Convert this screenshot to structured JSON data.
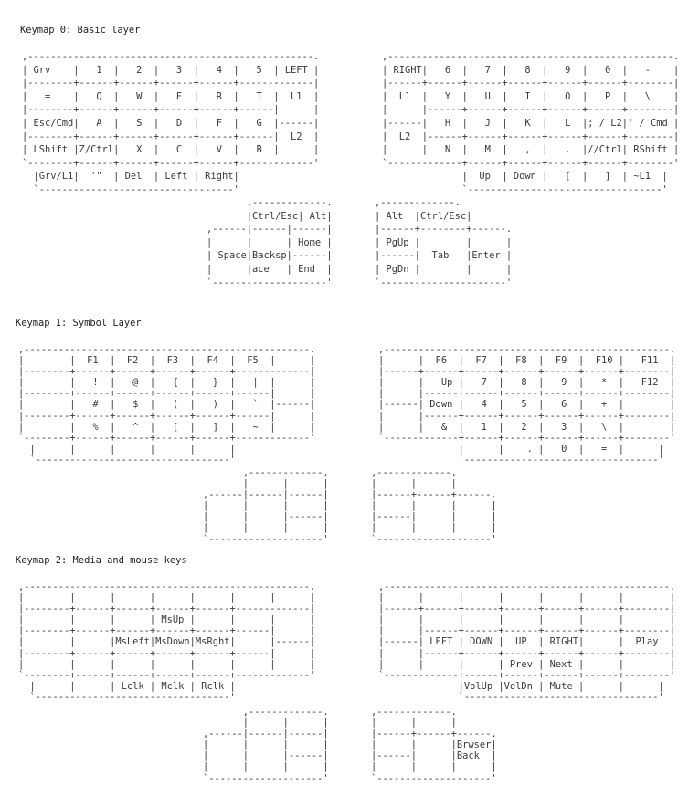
{
  "layers": [
    {
      "title": "Keymap 0: Basic layer",
      "left_hand": [
        ",--------------------------------------------------.",
        "| Grv    |   1  |   2  |   3  |   4  |   5  | LEFT |",
        "|--------+------+------+------+------+-------------|",
        "|   =    |   Q  |   W  |   E  |   R  |   T  |  L1  |",
        "|--------+------+------+------+------+------|      |",
        "| Esc/Cmd|   A  |   S  |   D  |   F  |   G  |------|",
        "|--------+------+------+------+------+------|  L2  |",
        "| LShift |Z/Ctrl|   X  |   C  |   V  |   B  |      |",
        "`--------+------+------+------+------+-------------'",
        "  |Grv/L1|  '\"  | Del  | Left | Right|",
        "  `----------------------------------'"
      ],
      "right_hand": [
        ",--------------------------------------------------.",
        "| RIGHT|   6  |   7  |   8  |   9  |   0  |   -    |",
        "|------+------+------+------+------+------+--------|",
        "|  L1  |   Y  |   U  |   I  |   O  |   P  |   \\    |",
        "|      |------+------+------+------+------+--------|",
        "|------|   H  |   J  |   K  |   L  |; / L2|' / Cmd |",
        "|  L2  |------+------+------+------+------+--------|",
        "|      |   N  |   M  |   ,  |   .  |//Ctrl| RShift |",
        "`-------------+------+------+------+------+--------'",
        "              |  Up  | Down |   [  |   ]  | ~L1  |",
        "              `----------------------------------'"
      ],
      "left_thumb": [
        "       ,-------------.",
        "       |Ctrl/Esc| Alt|",
        ",------|------|------|",
        "|      |      | Home |",
        "| Space|Backsp|------|",
        "|      |ace   | End  |",
        "`--------------------'"
      ],
      "right_thumb": [
        ",-------------.",
        "| Alt  |Ctrl/Esc|",
        "|------+--------+------.",
        "| PgUp |        |      |",
        "|------|  Tab   |Enter |",
        "| PgDn |        |      |",
        "`----------------------'"
      ]
    },
    {
      "title": "Keymap 1: Symbol Layer",
      "left_hand": [
        ",--------------------------------------------------.",
        "|        |  F1  |  F2  |  F3  |  F4  |  F5  |      |",
        "|--------+------+------+------+------+-------------|",
        "|        |   !  |   @  |   {  |   }  |   |  |      |",
        "|--------+------+------+------+------+------|      |",
        "|        |   #  |   $  |   (  |   )  |   `  |------|",
        "|--------+------+------+------+------+------|      |",
        "|        |   %  |   ^  |   [  |   ]  |   ~  |      |",
        "`--------+------+------+------+------+-------------'",
        "  |      |      |      |      |      |",
        "  `----------------------------------'"
      ],
      "right_hand": [
        ",--------------------------------------------------.",
        "|      |  F6  |  F7  |  F8  |  F9  |  F10 |   F11  |",
        "|------+------+------+------+------+------+--------|",
        "|      |   Up |   7  |   8  |   9  |   *  |   F12  |",
        "|      |------+------+------+------+------+--------|",
        "|------| Down |   4  |   5  |   6  |   +  |        |",
        "|      |------+------+------+------+------+--------|",
        "|      |   &  |   1  |   2  |   3  |   \\  |        |",
        "`-------------+------+------+------+------+--------'",
        "              |      |    . |   0  |   =  |      |",
        "              `----------------------------------'"
      ],
      "left_thumb": [
        "       ,-------------.",
        "       |      |      |",
        ",------|------|------|",
        "|      |      |      |",
        "|      |      |------|",
        "|      |      |      |",
        "`--------------------'"
      ],
      "right_thumb": [
        ",-------------.",
        "|      |      |",
        "|------+------+------.",
        "|      |      |      |",
        "|------|      |      |",
        "|      |      |      |",
        "`--------------------'"
      ]
    },
    {
      "title": "Keymap 2: Media and mouse keys",
      "left_hand": [
        ",--------------------------------------------------.",
        "|        |      |      |      |      |      |      |",
        "|--------+------+------+------+------+-------------|",
        "|        |      |      | MsUp |      |      |      |",
        "|--------+------+------+------+------+------|      |",
        "|        |      |MsLeft|MsDown|MsRght|      |------|",
        "|--------+------+------+------+------+------|      |",
        "|        |      |      |      |      |      |      |",
        "`--------+------+------+------+------+-------------'",
        "  |      |      | Lclk | Mclk | Rclk |",
        "  `----------------------------------'"
      ],
      "right_hand": [
        ",--------------------------------------------------.",
        "|      |      |      |      |      |      |        |",
        "|------+------+------+------+------+------+--------|",
        "|      |      |      |      |      |      |        |",
        "|      |------+------+------+------+------+--------|",
        "|------| LEFT | DOWN |  UP  | RIGHT|      |  Play  |",
        "|      |------+------+------+------+------+--------|",
        "|      |      |      | Prev | Next |      |        |",
        "`-------------+------+------+------+------+--------'",
        "              |VolUp |VolDn | Mute |      |      |",
        "              `----------------------------------'"
      ],
      "left_thumb": [
        "       ,-------------.",
        "       |      |      |",
        ",------|------|------|",
        "|      |      |      |",
        "|      |      |------|",
        "|      |      |      |",
        "`--------------------'"
      ],
      "right_thumb": [
        ",-------------.",
        "|      |      |",
        "|------+------+------.",
        "|      |      |Brwser|",
        "|------|      |Back  |",
        "|      |      |      |",
        "`--------------------'"
      ]
    }
  ]
}
